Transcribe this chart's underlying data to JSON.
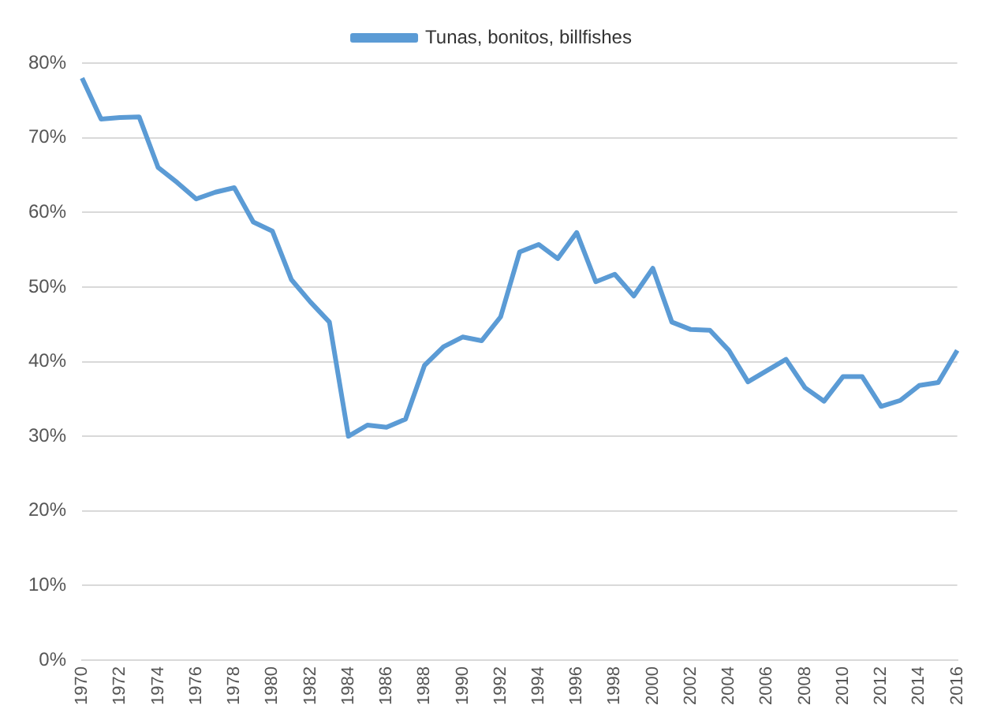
{
  "chart_data": {
    "type": "line",
    "legend": "top",
    "grid": "y",
    "marker": "none",
    "line_style": "solid",
    "categories": [
      "1970",
      null,
      "1972",
      null,
      "1974",
      null,
      "1976",
      null,
      "1978",
      null,
      "1980",
      null,
      "1982",
      null,
      "1984",
      null,
      "1986",
      null,
      "1988",
      null,
      "1990",
      null,
      "1992",
      null,
      "1994",
      null,
      "1996",
      null,
      "1998",
      null,
      "2000",
      null,
      "2002",
      null,
      "2004",
      null,
      "2006",
      null,
      "2008",
      null,
      "2010",
      null,
      "2012",
      null,
      "2014",
      null,
      "2016"
    ],
    "series": [
      {
        "name": "Tunas, bonitos, billfishes",
        "color": "#5b9bd5",
        "values": [
          78,
          72.5,
          72.7,
          72.8,
          66,
          64,
          61.8,
          62.7,
          63.3,
          58.7,
          57.5,
          51,
          48,
          45.3,
          30,
          31.5,
          31.2,
          32.3,
          39.5,
          42,
          43.3,
          42.8,
          46,
          54.7,
          55.7,
          53.8,
          57.3,
          50.7,
          51.7,
          48.8,
          52.5,
          45.3,
          44.3,
          44.2,
          41.5,
          37.3,
          38.8,
          40.3,
          36.5,
          34.7,
          38,
          38,
          34,
          34.8,
          36.8,
          37.2,
          41.5
        ]
      }
    ],
    "ylim": [
      0,
      80
    ],
    "yticks": [
      {
        "value": 0,
        "label": "0%"
      },
      {
        "value": 10,
        "label": "10%"
      },
      {
        "value": 20,
        "label": "20%"
      },
      {
        "value": 30,
        "label": "30%"
      },
      {
        "value": 40,
        "label": "40%"
      },
      {
        "value": 50,
        "label": "50%"
      },
      {
        "value": 60,
        "label": "60%"
      },
      {
        "value": 70,
        "label": "70%"
      },
      {
        "value": 80,
        "label": "80%"
      }
    ]
  }
}
